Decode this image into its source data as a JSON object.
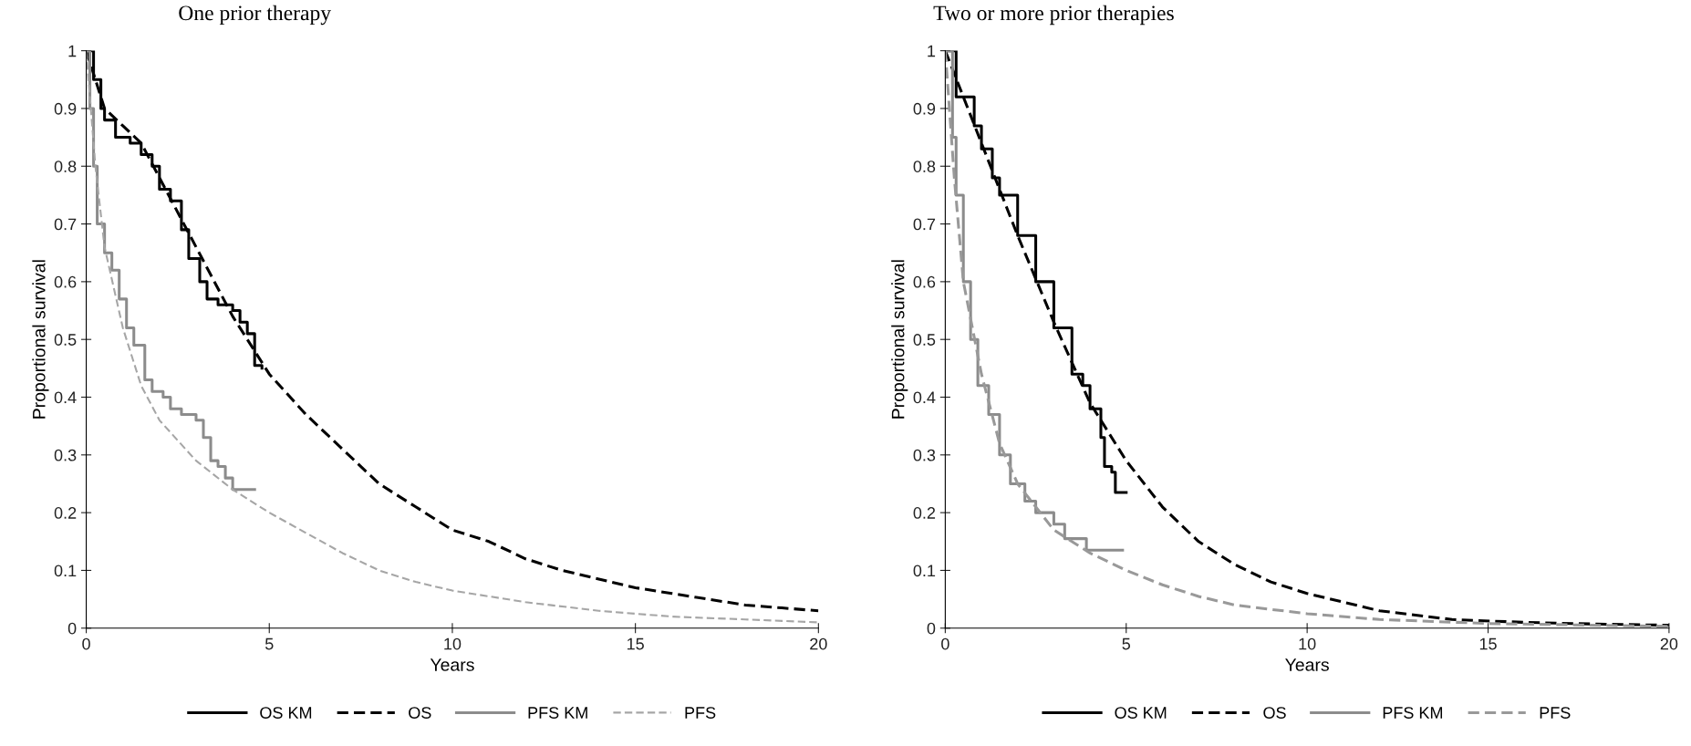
{
  "chart_data": [
    {
      "type": "line",
      "title": "One prior therapy",
      "xlabel": "Years",
      "ylabel": "Proportional survival",
      "xlim": [
        0,
        20
      ],
      "xticks": [
        0,
        5,
        10,
        15,
        20
      ],
      "ylim": [
        0,
        1
      ],
      "yticks": [
        0,
        0.1,
        0.2,
        0.3,
        0.4,
        0.5,
        0.6,
        0.7,
        0.8,
        0.9,
        1
      ],
      "grid": false,
      "legend": "bottom",
      "marker": "none",
      "series": [
        {
          "name": "OS KM",
          "type": "step",
          "color": "#000000",
          "line_style": "solid",
          "x": [
            0,
            0.2,
            0.4,
            0.5,
            0.8,
            1.2,
            1.5,
            1.8,
            2.0,
            2.3,
            2.6,
            2.8,
            3.1,
            3.3,
            3.6,
            4.0,
            4.2,
            4.4,
            4.6,
            4.8
          ],
          "values": [
            1,
            0.95,
            0.9,
            0.88,
            0.85,
            0.84,
            0.82,
            0.8,
            0.76,
            0.74,
            0.69,
            0.64,
            0.6,
            0.57,
            0.56,
            0.55,
            0.53,
            0.51,
            0.455,
            0.45
          ]
        },
        {
          "name": "OS",
          "color": "#000000",
          "line_style": "dashed",
          "x": [
            0,
            0.5,
            1,
            1.5,
            2,
            3,
            4,
            5,
            6,
            7,
            8,
            9,
            10,
            11,
            12,
            13,
            14,
            15,
            16,
            17,
            18,
            19,
            20
          ],
          "values": [
            1,
            0.9,
            0.87,
            0.84,
            0.78,
            0.66,
            0.54,
            0.44,
            0.37,
            0.31,
            0.25,
            0.21,
            0.17,
            0.15,
            0.12,
            0.1,
            0.085,
            0.07,
            0.06,
            0.05,
            0.04,
            0.035,
            0.03
          ]
        },
        {
          "name": "PFS KM",
          "type": "step",
          "color": "#8c8c8c",
          "line_style": "solid",
          "x": [
            0,
            0.1,
            0.2,
            0.3,
            0.5,
            0.7,
            0.9,
            1.1,
            1.3,
            1.6,
            1.8,
            2.1,
            2.3,
            2.6,
            3.0,
            3.2,
            3.4,
            3.6,
            3.8,
            4.0,
            4.6
          ],
          "values": [
            1,
            0.9,
            0.8,
            0.7,
            0.65,
            0.62,
            0.57,
            0.52,
            0.49,
            0.43,
            0.41,
            0.4,
            0.38,
            0.37,
            0.36,
            0.33,
            0.29,
            0.28,
            0.26,
            0.24,
            0.24
          ]
        },
        {
          "name": "PFS",
          "color": "#a6a6a6",
          "line_style": "dashed",
          "x": [
            0,
            0.25,
            0.5,
            1,
            1.5,
            2,
            3,
            4,
            5,
            6,
            7,
            8,
            9,
            10,
            12,
            14,
            16,
            18,
            20
          ],
          "values": [
            1,
            0.8,
            0.66,
            0.52,
            0.42,
            0.36,
            0.29,
            0.24,
            0.2,
            0.165,
            0.13,
            0.1,
            0.08,
            0.065,
            0.045,
            0.03,
            0.02,
            0.015,
            0.01
          ]
        }
      ]
    },
    {
      "type": "line",
      "title": "Two or more prior therapies",
      "xlabel": "Years",
      "ylabel": "Proportional survival",
      "xlim": [
        0,
        20
      ],
      "xticks": [
        0,
        5,
        10,
        15,
        20
      ],
      "ylim": [
        0,
        1
      ],
      "yticks": [
        0,
        0.1,
        0.2,
        0.3,
        0.4,
        0.5,
        0.6,
        0.7,
        0.8,
        0.9,
        1
      ],
      "grid": false,
      "legend": "bottom",
      "marker": "none",
      "series": [
        {
          "name": "OS KM",
          "type": "step",
          "color": "#000000",
          "line_style": "solid",
          "x": [
            0,
            0.3,
            0.8,
            1.0,
            1.3,
            1.5,
            2.0,
            2.5,
            3.0,
            3.5,
            3.8,
            4.0,
            4.3,
            4.4,
            4.6,
            4.7,
            5.0
          ],
          "values": [
            1,
            0.92,
            0.87,
            0.83,
            0.78,
            0.75,
            0.68,
            0.6,
            0.52,
            0.44,
            0.42,
            0.38,
            0.33,
            0.28,
            0.27,
            0.235,
            0.235
          ]
        },
        {
          "name": "OS",
          "color": "#000000",
          "line_style": "dashed",
          "x": [
            0,
            1,
            2,
            3,
            4,
            5,
            6,
            7,
            8,
            9,
            10,
            11,
            12,
            14,
            16,
            18,
            20
          ],
          "values": [
            1,
            0.84,
            0.68,
            0.53,
            0.39,
            0.29,
            0.21,
            0.15,
            0.11,
            0.08,
            0.06,
            0.045,
            0.03,
            0.015,
            0.01,
            0.007,
            0.005
          ]
        },
        {
          "name": "PFS KM",
          "type": "step",
          "color": "#8c8c8c",
          "line_style": "solid",
          "x": [
            0,
            0.2,
            0.3,
            0.5,
            0.7,
            0.9,
            1.2,
            1.5,
            1.8,
            2.2,
            2.5,
            3.0,
            3.3,
            3.9,
            4.9
          ],
          "values": [
            1,
            0.85,
            0.75,
            0.6,
            0.5,
            0.42,
            0.37,
            0.3,
            0.25,
            0.22,
            0.2,
            0.18,
            0.155,
            0.135,
            0.135
          ]
        },
        {
          "name": "PFS",
          "color": "#999999",
          "line_style": "dashed",
          "x": [
            0,
            0.25,
            0.5,
            1,
            1.5,
            2,
            3,
            4,
            5,
            6,
            7,
            8,
            10,
            12,
            15,
            20
          ],
          "values": [
            1,
            0.78,
            0.6,
            0.44,
            0.32,
            0.25,
            0.17,
            0.13,
            0.1,
            0.075,
            0.055,
            0.04,
            0.025,
            0.015,
            0.008,
            0.003
          ]
        }
      ]
    }
  ]
}
